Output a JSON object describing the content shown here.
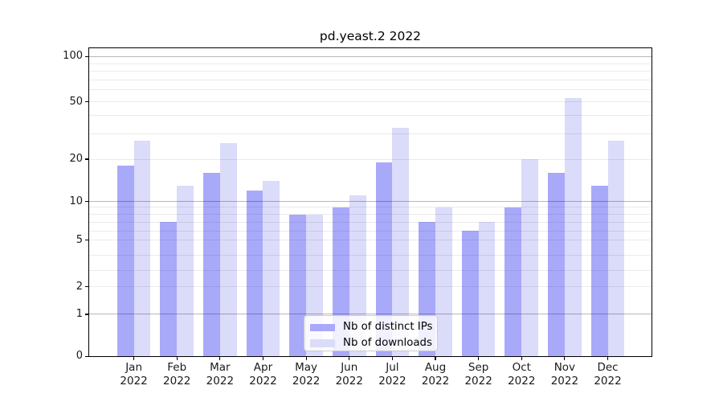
{
  "chart_data": {
    "type": "bar",
    "title": "pd.yeast.2 2022",
    "categories": [
      "Jan 2022",
      "Feb 2022",
      "Mar 2022",
      "Apr 2022",
      "May 2022",
      "Jun 2022",
      "Jul 2022",
      "Aug 2022",
      "Sep 2022",
      "Oct 2022",
      "Nov 2022",
      "Dec 2022"
    ],
    "series": [
      {
        "name": "Nb of distinct IPs",
        "color": "#a9a9fa",
        "values": [
          18,
          7,
          16,
          12,
          8,
          9,
          19,
          7,
          6,
          9,
          16,
          13
        ]
      },
      {
        "name": "Nb of downloads",
        "color": "#dbdbfa",
        "values": [
          27,
          13,
          26,
          14,
          8,
          11,
          33,
          9,
          7,
          20,
          53,
          27
        ]
      }
    ],
    "xlabel": "",
    "ylabel": "",
    "ylim": [
      0,
      100
    ],
    "yscale": "log-like with 0 baseline",
    "y_ticks": [
      {
        "value": 100,
        "label": "100"
      },
      {
        "value": 50,
        "label": "50"
      },
      {
        "value": 20,
        "label": "20"
      },
      {
        "value": 10,
        "label": "10"
      },
      {
        "value": 5,
        "label": "5"
      },
      {
        "value": 2,
        "label": "2"
      },
      {
        "value": 1,
        "label": "1"
      },
      {
        "value": 0,
        "label": "0"
      }
    ],
    "minor_gridlines": [
      2,
      3,
      4,
      5,
      6,
      7,
      8,
      9,
      20,
      30,
      40,
      50,
      60,
      70,
      80,
      90
    ],
    "major_gridlines": [
      1,
      10,
      100
    ],
    "grid": "on",
    "legend": {
      "position": "lower center",
      "labels": [
        "Nb of distinct IPs",
        "Nb of downloads"
      ]
    }
  },
  "style": {
    "background": "#ffffff",
    "bar_color_distinct_ips": "#a9a9fa",
    "bar_color_downloads": "#dbdbfa",
    "minor_grid_color": "rgba(0,0,0,0.08)",
    "major_grid_color": "rgba(0,0,0,0.28)",
    "axis_color": "#000000",
    "text_color": "#1a1a1a",
    "legend_border_color": "#cccccc"
  }
}
